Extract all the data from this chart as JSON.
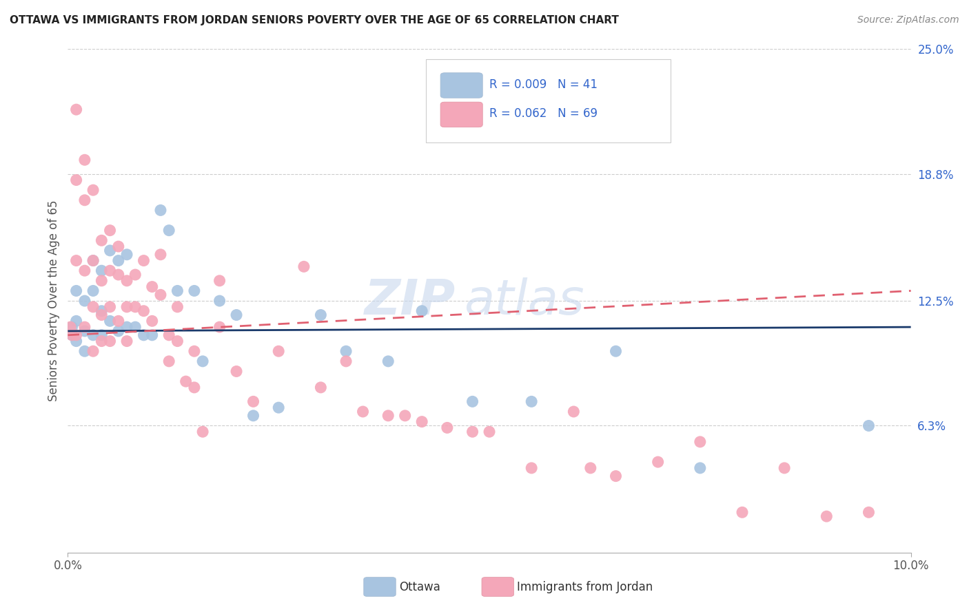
{
  "title": "OTTAWA VS IMMIGRANTS FROM JORDAN SENIORS POVERTY OVER THE AGE OF 65 CORRELATION CHART",
  "source": "Source: ZipAtlas.com",
  "ylabel": "Seniors Poverty Over the Age of 65",
  "xlim": [
    0.0,
    0.1
  ],
  "ylim": [
    0.0,
    0.25
  ],
  "ytick_labels_right": [
    "25.0%",
    "18.8%",
    "12.5%",
    "6.3%"
  ],
  "ytick_vals_right": [
    0.25,
    0.188,
    0.125,
    0.063
  ],
  "ottawa_color": "#a8c4e0",
  "jordan_color": "#f4a7b9",
  "ottawa_line_color": "#1a3a6b",
  "jordan_line_color": "#e06070",
  "ottawa_R": 0.009,
  "ottawa_N": 41,
  "jordan_R": 0.062,
  "jordan_N": 69,
  "watermark": "ZIPatlas",
  "ottawa_scatter_x": [
    0.0005,
    0.0005,
    0.001,
    0.001,
    0.001,
    0.002,
    0.002,
    0.002,
    0.003,
    0.003,
    0.003,
    0.004,
    0.004,
    0.004,
    0.005,
    0.005,
    0.006,
    0.006,
    0.007,
    0.007,
    0.008,
    0.009,
    0.01,
    0.011,
    0.012,
    0.013,
    0.015,
    0.016,
    0.018,
    0.02,
    0.022,
    0.025,
    0.03,
    0.033,
    0.038,
    0.042,
    0.048,
    0.055,
    0.065,
    0.075,
    0.095
  ],
  "ottawa_scatter_y": [
    0.112,
    0.108,
    0.13,
    0.115,
    0.105,
    0.125,
    0.11,
    0.1,
    0.145,
    0.13,
    0.108,
    0.14,
    0.12,
    0.108,
    0.15,
    0.115,
    0.145,
    0.11,
    0.148,
    0.112,
    0.112,
    0.108,
    0.108,
    0.17,
    0.16,
    0.13,
    0.13,
    0.095,
    0.125,
    0.118,
    0.068,
    0.072,
    0.118,
    0.1,
    0.095,
    0.12,
    0.075,
    0.075,
    0.1,
    0.042,
    0.063
  ],
  "jordan_scatter_x": [
    0.0003,
    0.0005,
    0.001,
    0.001,
    0.001,
    0.001,
    0.002,
    0.002,
    0.002,
    0.002,
    0.003,
    0.003,
    0.003,
    0.003,
    0.004,
    0.004,
    0.004,
    0.004,
    0.005,
    0.005,
    0.005,
    0.005,
    0.006,
    0.006,
    0.006,
    0.007,
    0.007,
    0.007,
    0.008,
    0.008,
    0.009,
    0.009,
    0.01,
    0.01,
    0.011,
    0.011,
    0.012,
    0.012,
    0.013,
    0.013,
    0.014,
    0.015,
    0.015,
    0.016,
    0.018,
    0.018,
    0.02,
    0.022,
    0.025,
    0.028,
    0.03,
    0.033,
    0.035,
    0.038,
    0.04,
    0.042,
    0.045,
    0.048,
    0.05,
    0.055,
    0.06,
    0.062,
    0.065,
    0.07,
    0.075,
    0.08,
    0.085,
    0.09,
    0.095
  ],
  "jordan_scatter_y": [
    0.112,
    0.108,
    0.22,
    0.185,
    0.145,
    0.108,
    0.195,
    0.175,
    0.14,
    0.112,
    0.18,
    0.145,
    0.122,
    0.1,
    0.155,
    0.135,
    0.118,
    0.105,
    0.16,
    0.14,
    0.122,
    0.105,
    0.152,
    0.138,
    0.115,
    0.135,
    0.122,
    0.105,
    0.138,
    0.122,
    0.145,
    0.12,
    0.132,
    0.115,
    0.148,
    0.128,
    0.108,
    0.095,
    0.122,
    0.105,
    0.085,
    0.1,
    0.082,
    0.06,
    0.135,
    0.112,
    0.09,
    0.075,
    0.1,
    0.142,
    0.082,
    0.095,
    0.07,
    0.068,
    0.068,
    0.065,
    0.062,
    0.06,
    0.06,
    0.042,
    0.07,
    0.042,
    0.038,
    0.045,
    0.055,
    0.02,
    0.042,
    0.018,
    0.02
  ]
}
